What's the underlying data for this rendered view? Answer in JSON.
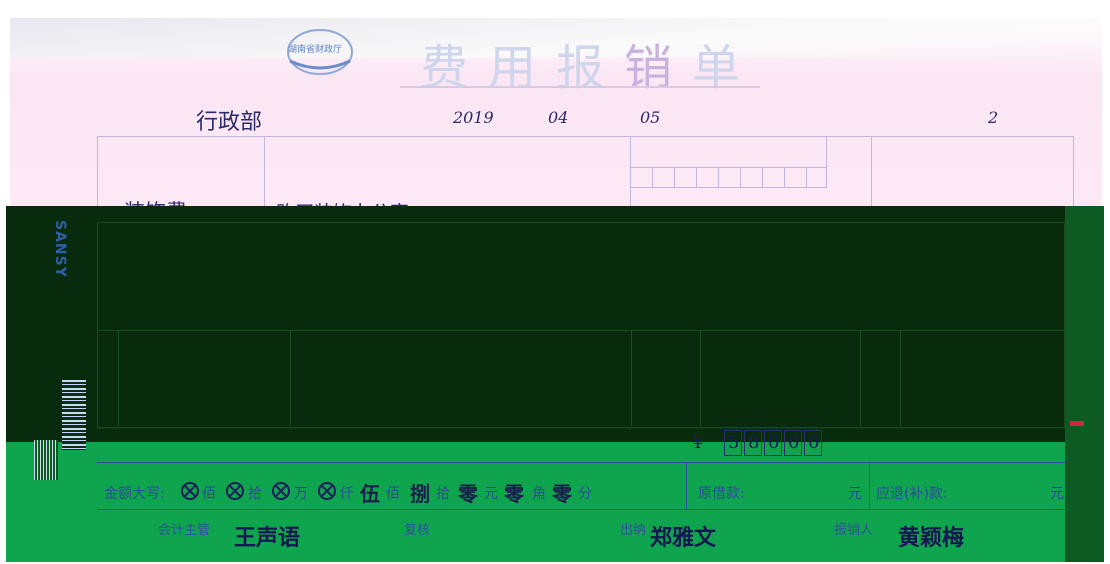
{
  "form": {
    "logo_text": "湖南省财政厅",
    "title_chars": [
      "费",
      "用",
      "报",
      "销",
      "单"
    ],
    "department": "行政部",
    "date_year": "2019",
    "date_month": "04",
    "date_day": "05",
    "attachments": "2",
    "row1_item": "装饰费",
    "row1_desc": "购买装饰办公室",
    "brand_text": "SANSY",
    "total_prefix": "¥",
    "total_digits": [
      "5",
      "8",
      "0",
      "0",
      "0"
    ],
    "total_cent_mark": "",
    "amount_words": {
      "label": "金额大写:",
      "units": [
        "佰",
        "拾",
        "万",
        "仟"
      ],
      "thousand_hand": "伍",
      "hundred_unit": "佰",
      "tens_hand": "捌",
      "tens_unit": "拾",
      "yuan_hand": "零",
      "yuan_unit": "元",
      "jiao_hand": "零",
      "jiao_unit": "角",
      "fen_hand": "零",
      "fen_unit": "分"
    },
    "advance_label": "原借款:",
    "advance_unit": "元",
    "refund_label": "应退(补)款:",
    "refund_unit": "元",
    "sign_accountant_label": "会计主管",
    "sign_accountant": "王声语",
    "sign_review_label": "复核",
    "sign_cashier_label": "出纳",
    "sign_cashier": "郑雅文",
    "sign_claimant_label": "报销人",
    "sign_claimant": "黄颖梅"
  },
  "colors": {
    "paper": "#fde8f6",
    "dark_band": "#072b0c",
    "green_band": "#0fa44e",
    "ink": "#2c4f9b"
  }
}
